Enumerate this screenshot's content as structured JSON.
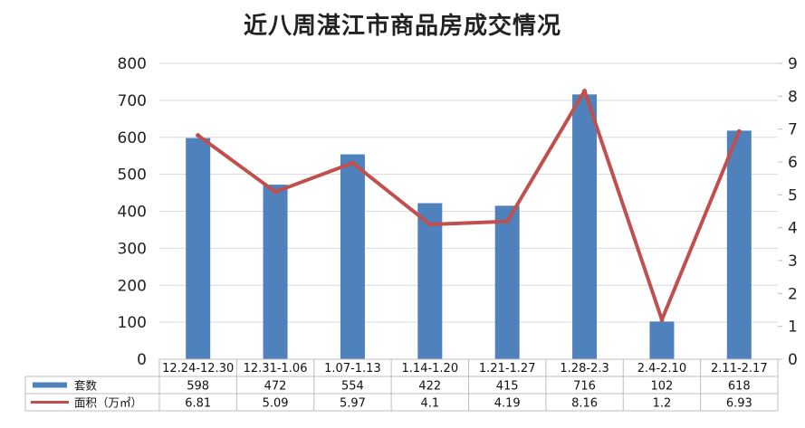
{
  "chart_data": {
    "type": "bar+line",
    "title": "近八周湛江市商品房成交情况",
    "categories": [
      "12.24-12.30",
      "12.31-1.06",
      "1.07-1.13",
      "1.14-1.20",
      "1.21-1.27",
      "1.28-2.3",
      "2.4-2.10",
      "2.11-2.17"
    ],
    "series": [
      {
        "name": "套数",
        "type": "bar",
        "axis": "left",
        "color": "#4F81BD",
        "values": [
          598,
          472,
          554,
          422,
          415,
          716,
          102,
          618
        ],
        "labels": [
          "598",
          "472",
          "554",
          "422",
          "415",
          "716",
          "102",
          "618"
        ]
      },
      {
        "name": "面积（万㎡）",
        "type": "line",
        "axis": "right",
        "color": "#C0504D",
        "values": [
          6.81,
          5.09,
          5.97,
          4.1,
          4.19,
          8.16,
          1.2,
          6.93
        ],
        "labels": [
          "6.81",
          "5.09",
          "5.97",
          "4.1",
          "4.19",
          "8.16",
          "1.2",
          "6.93"
        ]
      }
    ],
    "y_left": {
      "min": 0,
      "max": 800,
      "ticks": [
        "0",
        "100",
        "200",
        "300",
        "400",
        "500",
        "600",
        "700",
        "800"
      ]
    },
    "y_right": {
      "min": 0,
      "max": 9,
      "ticks": [
        "0",
        "1",
        "2",
        "3",
        "4",
        "5",
        "6",
        "7",
        "8",
        "9"
      ]
    },
    "grid": true,
    "data_table": true
  }
}
